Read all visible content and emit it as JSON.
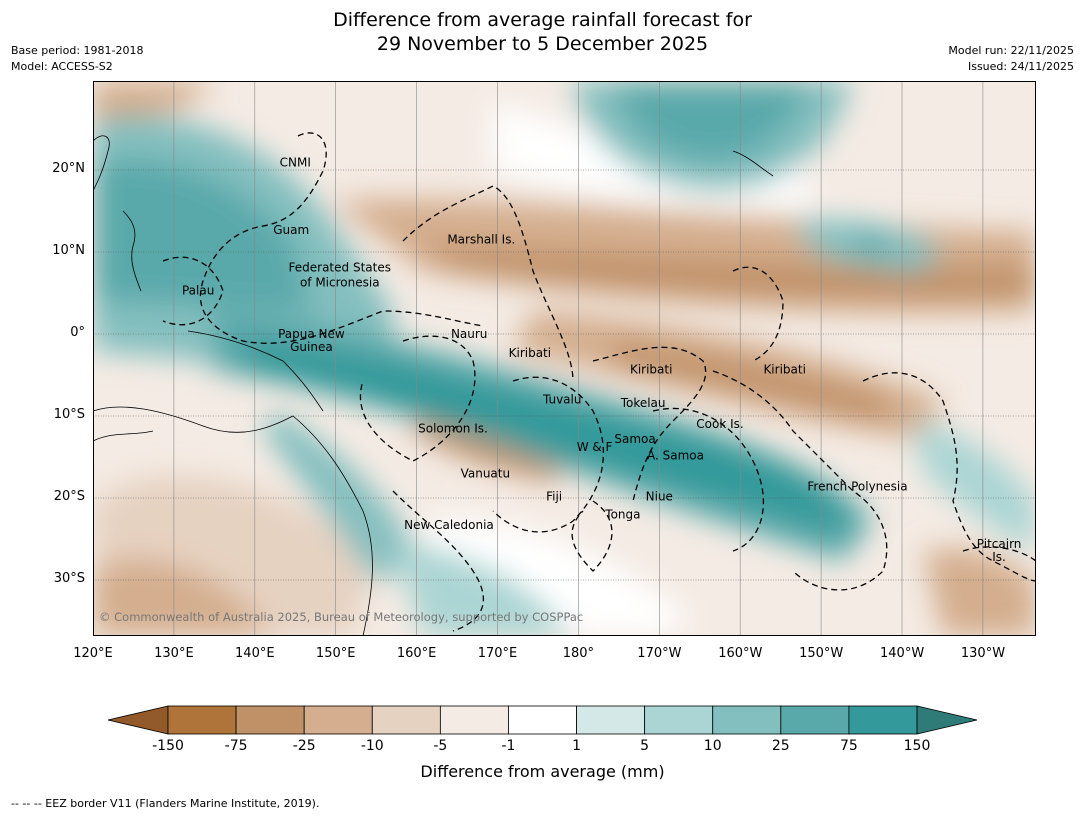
{
  "title_line1": "Difference from average rainfall forecast for",
  "title_line2": "29 November to 5 December 2025",
  "base_period": "Base period: 1981-2018",
  "model": "Model: ACCESS-S2",
  "model_run": "Model run: 22/11/2025",
  "issued": "Issued: 24/11/2025",
  "copyright": "© Commonwealth of Australia 2025, Bureau of Meteorology, supported by COSPPac",
  "lat_labels": [
    {
      "text": "20°N",
      "lat": 20
    },
    {
      "text": "10°N",
      "lat": 10
    },
    {
      "text": "0°",
      "lat": 0
    },
    {
      "text": "10°S",
      "lat": -10
    },
    {
      "text": "20°S",
      "lat": -20
    },
    {
      "text": "30°S",
      "lat": -30
    }
  ],
  "lon_labels": [
    {
      "text": "120°E",
      "lon": 120
    },
    {
      "text": "130°E",
      "lon": 130
    },
    {
      "text": "140°E",
      "lon": 140
    },
    {
      "text": "150°E",
      "lon": 150
    },
    {
      "text": "160°E",
      "lon": 160
    },
    {
      "text": "170°E",
      "lon": 170
    },
    {
      "text": "180°",
      "lon": 180
    },
    {
      "text": "170°W",
      "lon": 190
    },
    {
      "text": "160°W",
      "lon": 200
    },
    {
      "text": "150°W",
      "lon": 210
    },
    {
      "text": "140°W",
      "lon": 220
    },
    {
      "text": "130°W",
      "lon": 230
    }
  ],
  "place_labels": [
    {
      "text": "CNMI",
      "lon": 145.0,
      "lat": 20.9
    },
    {
      "text": "Guam",
      "lon": 144.5,
      "lat": 12.7
    },
    {
      "text": "Federated States",
      "lon": 150.5,
      "lat": 8.1
    },
    {
      "text": "of Micronesia",
      "lon": 150.5,
      "lat": 6.3
    },
    {
      "text": "Palau",
      "lon": 133.0,
      "lat": 5.3
    },
    {
      "text": "Marshall Is.",
      "lon": 168.0,
      "lat": 11.5
    },
    {
      "text": "Papua New",
      "lon": 147.0,
      "lat": 0.0
    },
    {
      "text": "Guinea",
      "lon": 147.0,
      "lat": -1.6
    },
    {
      "text": "Nauru",
      "lon": 166.5,
      "lat": 0.0
    },
    {
      "text": "Kiribati",
      "lon": 174.0,
      "lat": -2.3
    },
    {
      "text": "Kiribati",
      "lon": 189.0,
      "lat": -4.3
    },
    {
      "text": "Kiribati",
      "lon": 205.5,
      "lat": -4.3
    },
    {
      "text": "Tuvalu",
      "lon": 178.0,
      "lat": -8.0
    },
    {
      "text": "Tokelau",
      "lon": 188.0,
      "lat": -8.4
    },
    {
      "text": "Solomon Is.",
      "lon": 164.5,
      "lat": -11.5
    },
    {
      "text": "Cook Is.",
      "lon": 197.5,
      "lat": -11.0
    },
    {
      "text": "Samoa",
      "lon": 187.0,
      "lat": -12.8
    },
    {
      "text": "W & F",
      "lon": 182.0,
      "lat": -13.8
    },
    {
      "text": "A. Samoa",
      "lon": 192.0,
      "lat": -14.8
    },
    {
      "text": "Vanuatu",
      "lon": 168.5,
      "lat": -17.0
    },
    {
      "text": "French Polynesia",
      "lon": 214.5,
      "lat": -18.6
    },
    {
      "text": "Fiji",
      "lon": 177.0,
      "lat": -19.8
    },
    {
      "text": "Niue",
      "lon": 190.0,
      "lat": -19.8
    },
    {
      "text": "Tonga",
      "lon": 185.5,
      "lat": -22.0
    },
    {
      "text": "New Caledonia",
      "lon": 164.0,
      "lat": -23.3
    },
    {
      "text": "Pitcairn",
      "lon": 232.0,
      "lat": -25.6
    },
    {
      "text": "Is.",
      "lon": 232.0,
      "lat": -27.2
    }
  ],
  "colorbar": {
    "tick_labels": [
      "-150",
      "-75",
      "-25",
      "-10",
      "-5",
      "-1",
      "1",
      "5",
      "10",
      "25",
      "75",
      "150"
    ],
    "colors": [
      "#925a2a",
      "#ae7439",
      "#c09167",
      "#d4ae8e",
      "#e6d2c1",
      "#f4ebe4",
      "#ffffff",
      "#d4e9e7",
      "#abd5d4",
      "#84bfbf",
      "#5aa9aa",
      "#33999a",
      "#2e7b78"
    ],
    "title": "Difference from average (mm)"
  },
  "footer": "--  --  -- EEZ border V11 (Flanders Marine Institute, 2019)."
}
